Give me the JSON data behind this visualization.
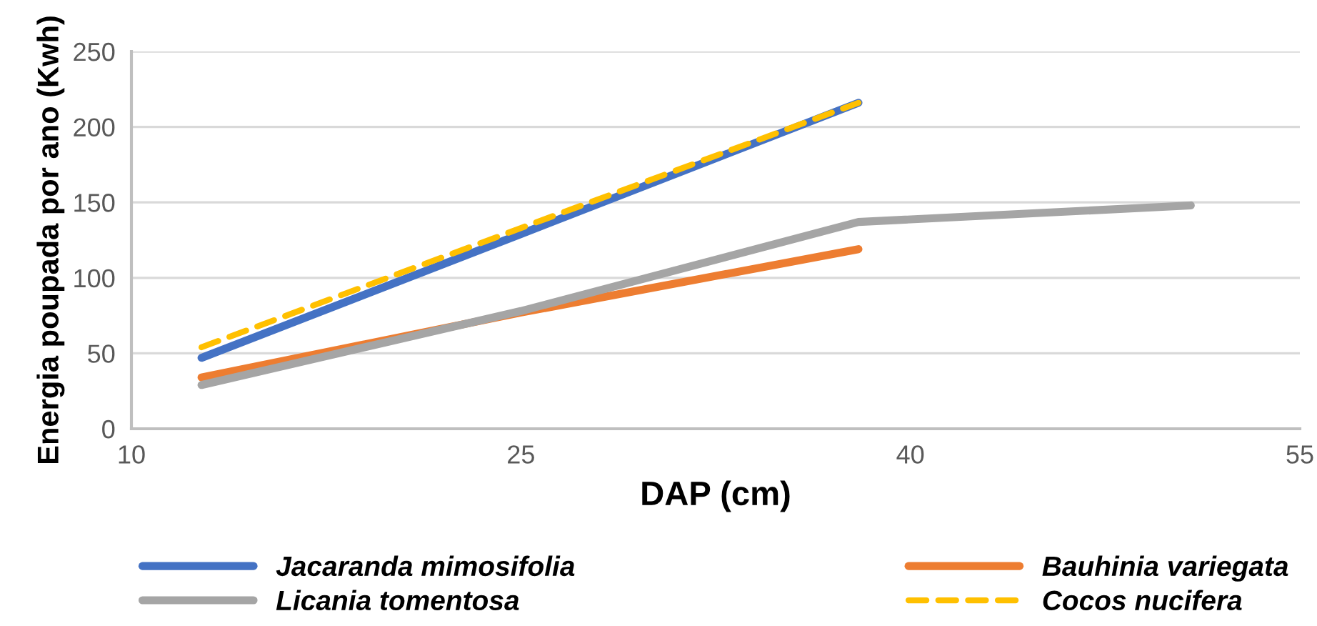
{
  "chart_data": {
    "type": "line",
    "xlabel": "DAP (cm)",
    "ylabel": "Energia poupada por ano (Kwh)",
    "xlim": [
      10,
      55
    ],
    "xticks": [
      10,
      25,
      40,
      55
    ],
    "ylim": [
      0,
      250
    ],
    "yticks": [
      0,
      50,
      100,
      150,
      200,
      250
    ],
    "grid": "y",
    "legend": "bottom",
    "series": [
      {
        "name": "Jacaranda mimosifolia",
        "color": "#4472c4",
        "x": [
          12.7,
          25,
          38
        ],
        "values": [
          47,
          129,
          216
        ]
      },
      {
        "name": "Bauhinia variegata",
        "color": "#ed7d31",
        "x": [
          12.7,
          25,
          38
        ],
        "values": [
          34,
          77,
          119
        ]
      },
      {
        "name": "Licania tomentosa",
        "color": "#a5a5a5",
        "x": [
          12.7,
          25,
          38,
          50.8
        ],
        "values": [
          29,
          78,
          137,
          148
        ]
      },
      {
        "name": "Cocos nucifera",
        "color": "#ffc000",
        "line_style": "dashed",
        "x": [
          12.7,
          25,
          38
        ],
        "values": [
          54,
          133,
          216
        ]
      }
    ]
  }
}
